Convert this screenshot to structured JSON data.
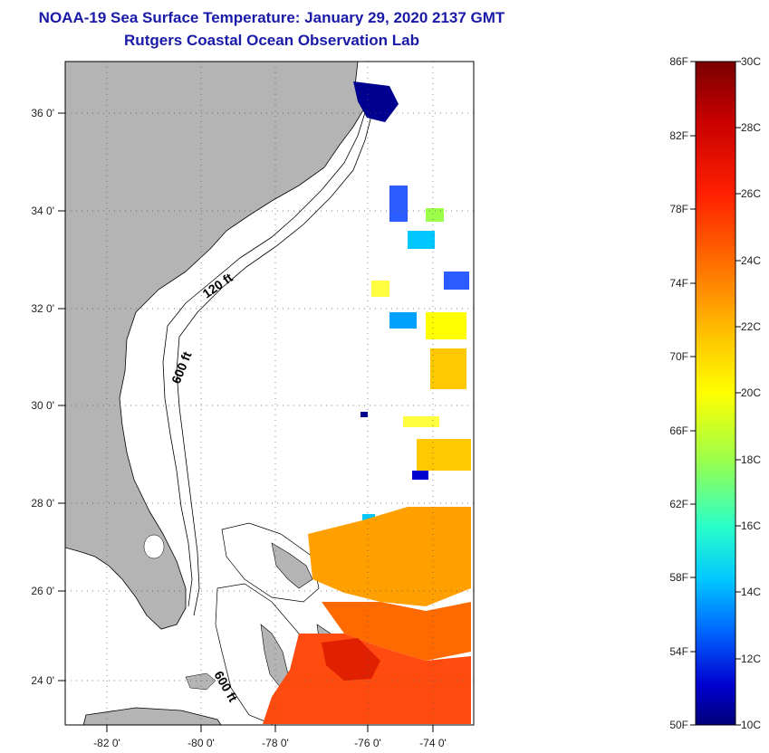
{
  "title": {
    "line1": "NOAA-19 Sea Surface Temperature:  January 29, 2020 2137 GMT",
    "line2": "Rutgers Coastal Ocean Observation Lab"
  },
  "map": {
    "lat_labels": [
      "36 0'",
      "34 0'",
      "32 0'",
      "30 0'",
      "28 0'",
      "26 0'",
      "24 0'"
    ],
    "lon_labels": [
      "-82 0'",
      "-80 0'",
      "-78 0'",
      "-76 0'",
      "-74 0'"
    ],
    "contour_labels": [
      "120 ft",
      "600 ft",
      "600 ft"
    ],
    "land_color": "#b4b4b4"
  },
  "colorbar": {
    "fahrenheit": [
      "86F",
      "82F",
      "78F",
      "74F",
      "70F",
      "66F",
      "62F",
      "58F",
      "54F",
      "50F"
    ],
    "celsius": [
      "30C",
      "28C",
      "26C",
      "24C",
      "22C",
      "20C",
      "18C",
      "16C",
      "14C",
      "12C",
      "10C"
    ],
    "colors_top_to_bottom": [
      "#7a0000",
      "#c80000",
      "#ff2000",
      "#ff7a00",
      "#ffc800",
      "#ffff00",
      "#9cff4a",
      "#2affc8",
      "#00c8ff",
      "#0064ff",
      "#0000d0",
      "#00007a"
    ]
  }
}
